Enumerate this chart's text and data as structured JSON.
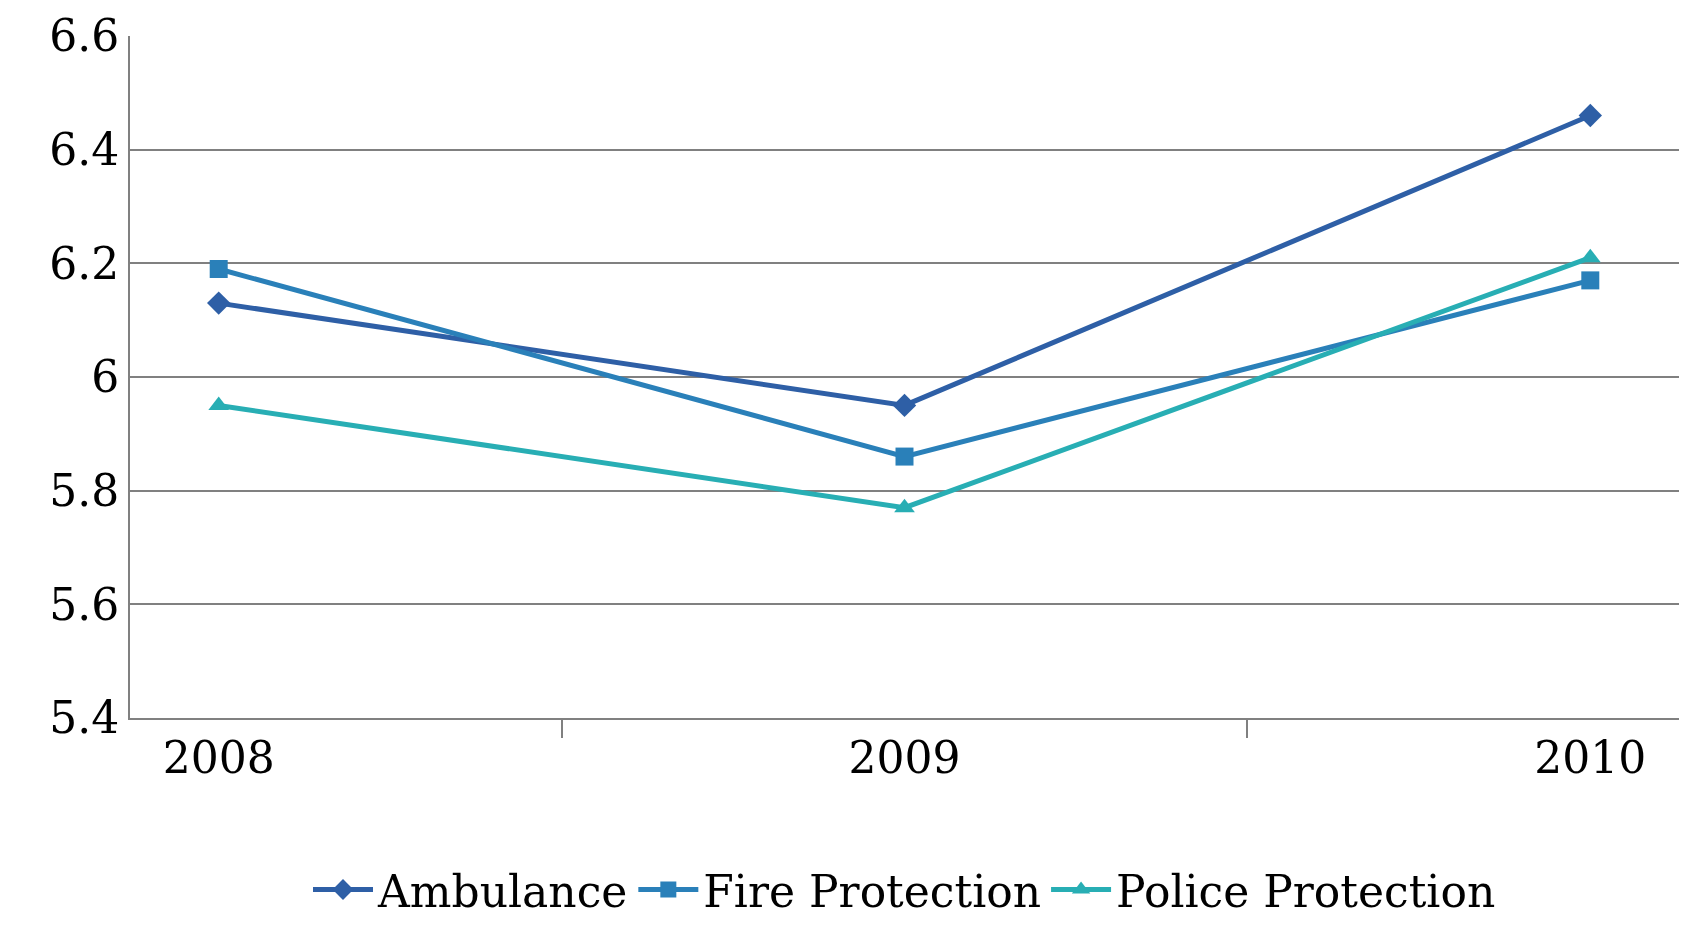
{
  "chart_data": {
    "type": "line",
    "categories": [
      "2008",
      "2009",
      "2010"
    ],
    "series": [
      {
        "name": "Ambulance",
        "color": "#2e5fa6",
        "values": [
          6.13,
          5.95,
          6.46
        ],
        "marker": "diamond"
      },
      {
        "name": "Fire Protection",
        "color": "#2a80b9",
        "values": [
          6.19,
          5.86,
          6.17
        ],
        "marker": "square"
      },
      {
        "name": "Police Protection",
        "color": "#28aeb4",
        "values": [
          5.95,
          5.77,
          6.21
        ],
        "marker": "triangle"
      }
    ],
    "ylim": [
      5.4,
      6.6
    ],
    "yticks": [
      5.4,
      5.6,
      5.8,
      6,
      6.2,
      6.4,
      6.6
    ],
    "grid": "y",
    "legend": "bottom",
    "line_style": "solid"
  }
}
